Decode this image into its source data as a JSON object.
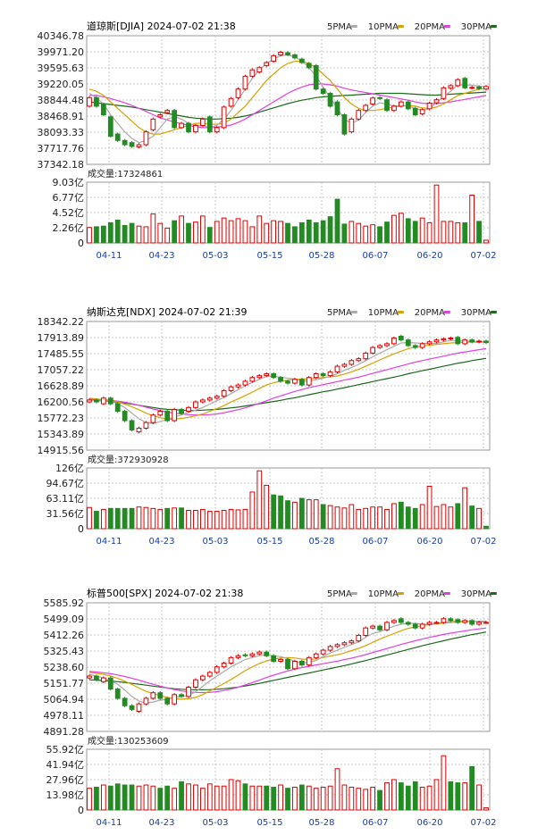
{
  "legend": [
    {
      "label": "5PMA",
      "color": "#aaaaaa"
    },
    {
      "label": "10PMA",
      "color": "#d9a000"
    },
    {
      "label": "20PMA",
      "color": "#e040e0"
    },
    {
      "label": "30PMA",
      "color": "#1a6a1a"
    }
  ],
  "colors": {
    "up": "#e00000",
    "down": "#228B22",
    "grid": "#c8c8c8",
    "axis": "#999999"
  },
  "x_ticks": [
    "04-11",
    "04-23",
    "05-03",
    "05-15",
    "05-28",
    "06-07",
    "06-20",
    "07-02"
  ],
  "chart_data": [
    {
      "type": "candlestick",
      "title": "道琼斯[DJIA] 2024-07-02 21:38",
      "price_ticks": [
        "40346.78",
        "39971.20",
        "39595.63",
        "39220.05",
        "38844.48",
        "38468.91",
        "38093.33",
        "37717.76",
        "37342.18"
      ],
      "price_range": [
        37342.18,
        40346.78
      ],
      "volume_label": "成交量:17324861",
      "volume_ticks": [
        "9.03亿",
        "6.77亿",
        "4.52亿",
        "2.26亿",
        "0"
      ],
      "volume_max": 9.03,
      "close": [
        38900,
        38700,
        38500,
        38000,
        37900,
        37800,
        37760,
        37800,
        38100,
        38400,
        38500,
        38600,
        38200,
        38300,
        38100,
        38250,
        38400,
        38100,
        38200,
        38680,
        38880,
        39100,
        39400,
        39550,
        39600,
        39720,
        39880,
        39960,
        39900,
        39830,
        39720,
        39600,
        39100,
        39000,
        38700,
        38500,
        38050,
        38400,
        38600,
        38720,
        38890,
        38880,
        38600,
        38700,
        38800,
        38640,
        38500,
        38620,
        38770,
        38850,
        39130,
        39180,
        39320,
        39130,
        39140,
        39110,
        39160
      ],
      "open": [
        38700,
        38900,
        38750,
        38450,
        38050,
        37900,
        37850,
        37750,
        37800,
        38150,
        38450,
        38550,
        38600,
        38200,
        38300,
        38100,
        38250,
        38450,
        38100,
        38200,
        38700,
        38900,
        39100,
        39400,
        39500,
        39650,
        39750,
        39900,
        39950,
        39900,
        39800,
        39700,
        39650,
        39100,
        39000,
        38800,
        38500,
        38100,
        38400,
        38600,
        38750,
        38900,
        38850,
        38600,
        38700,
        38800,
        38650,
        38520,
        38640,
        38780,
        38880,
        39120,
        39180,
        39350,
        39130,
        39150,
        39100
      ],
      "volume": [
        2.3,
        2.4,
        2.5,
        3.0,
        3.4,
        2.6,
        2.9,
        2.5,
        2.4,
        4.3,
        2.9,
        2.2,
        3.3,
        4.0,
        2.9,
        3.1,
        4.0,
        2.3,
        3.2,
        3.7,
        3.3,
        3.6,
        3.3,
        2.4,
        4.0,
        2.9,
        3.3,
        3.2,
        2.9,
        2.4,
        3.0,
        3.4,
        3.0,
        3.3,
        3.9,
        6.5,
        2.8,
        3.2,
        2.9,
        2.5,
        2.7,
        2.4,
        3.1,
        4.1,
        4.4,
        3.6,
        3.2,
        3.7,
        3.0,
        8.6,
        3.2,
        3.2,
        3.0,
        3.0,
        7.1,
        3.2,
        0.4
      ],
      "ma5": [
        39000,
        38900,
        38750,
        38500,
        38300,
        38100,
        37950,
        37850,
        37900,
        38000,
        38200,
        38400,
        38450,
        38400,
        38300,
        38250,
        38250,
        38200,
        38250,
        38400,
        38600,
        38850,
        39100,
        39350,
        39550,
        39700,
        39800,
        39880,
        39900,
        39850,
        39760,
        39600,
        39400,
        39150,
        38900,
        38650,
        38400,
        38300,
        38380,
        38550,
        38700,
        38780,
        38750,
        38700,
        38720,
        38700,
        38650,
        38600,
        38640,
        38780,
        38930,
        39050,
        39200,
        39200,
        39190,
        39170,
        39150
      ],
      "ma10": [
        39100,
        39050,
        38950,
        38800,
        38650,
        38500,
        38350,
        38200,
        38100,
        38050,
        38050,
        38100,
        38150,
        38200,
        38250,
        38300,
        38300,
        38280,
        38280,
        38300,
        38400,
        38550,
        38700,
        38900,
        39100,
        39300,
        39450,
        39600,
        39700,
        39750,
        39750,
        39700,
        39600,
        39450,
        39300,
        39100,
        38900,
        38750,
        38650,
        38600,
        38600,
        38620,
        38650,
        38680,
        38700,
        38720,
        38700,
        38660,
        38650,
        38680,
        38750,
        38850,
        38950,
        39000,
        39050,
        39100,
        39120
      ],
      "ma20": [
        38950,
        38950,
        38920,
        38880,
        38830,
        38780,
        38720,
        38650,
        38580,
        38500,
        38430,
        38380,
        38330,
        38290,
        38250,
        38220,
        38200,
        38200,
        38210,
        38230,
        38260,
        38320,
        38400,
        38500,
        38600,
        38700,
        38800,
        38900,
        39000,
        39080,
        39150,
        39200,
        39220,
        39220,
        39200,
        39170,
        39120,
        39080,
        39050,
        39020,
        38990,
        38960,
        38930,
        38900,
        38870,
        38840,
        38800,
        38770,
        38760,
        38760,
        38780,
        38800,
        38830,
        38860,
        38890,
        38920,
        38950
      ],
      "ma30": [
        38800,
        38780,
        38760,
        38740,
        38720,
        38700,
        38680,
        38650,
        38620,
        38590,
        38560,
        38530,
        38500,
        38470,
        38440,
        38420,
        38410,
        38400,
        38400,
        38410,
        38420,
        38440,
        38470,
        38510,
        38560,
        38610,
        38660,
        38710,
        38760,
        38800,
        38840,
        38870,
        38900,
        38920,
        38930,
        38940,
        38950,
        38960,
        38970,
        38980,
        38990,
        39000,
        39000,
        39000,
        39000,
        38990,
        38980,
        38970,
        38960,
        38960,
        38970,
        38980,
        38990,
        39000,
        39010,
        39020,
        39030
      ]
    },
    {
      "type": "candlestick",
      "title": "纳斯达克[NDX] 2024-07-02 21:39",
      "price_ticks": [
        "18342.22",
        "17913.89",
        "17485.55",
        "17057.22",
        "16628.89",
        "16200.56",
        "15772.23",
        "15343.89",
        "14915.56"
      ],
      "price_range": [
        14915.56,
        18342.22
      ],
      "volume_label": "成交量:372930928",
      "volume_ticks": [
        "126亿",
        "94.67亿",
        "63.11亿",
        "31.56亿",
        "0"
      ],
      "volume_max": 126,
      "close": [
        16250,
        16200,
        16300,
        16150,
        15950,
        15700,
        15450,
        15500,
        15650,
        15850,
        15950,
        15700,
        16000,
        15900,
        16050,
        16200,
        16250,
        16300,
        16350,
        16500,
        16600,
        16650,
        16750,
        16850,
        16900,
        16950,
        16850,
        16750,
        16700,
        16800,
        16650,
        16850,
        16950,
        16900,
        17000,
        17150,
        17200,
        17300,
        17350,
        17500,
        17650,
        17700,
        17750,
        17900,
        17850,
        17700,
        17650,
        17750,
        17800,
        17850,
        17880,
        17900,
        17750,
        17850,
        17800,
        17820,
        17780
      ],
      "open": [
        16200,
        16250,
        16150,
        16300,
        16150,
        15950,
        15700,
        15400,
        15500,
        15650,
        15850,
        15950,
        15700,
        16000,
        15950,
        16050,
        16200,
        16250,
        16300,
        16350,
        16500,
        16600,
        16650,
        16750,
        16850,
        16900,
        16950,
        16850,
        16750,
        16700,
        16800,
        16650,
        16850,
        16950,
        16900,
        17000,
        17150,
        17200,
        17300,
        17350,
        17500,
        17650,
        17700,
        17750,
        17950,
        17850,
        17700,
        17650,
        17750,
        17800,
        17850,
        17880,
        17920,
        17750,
        17850,
        17800,
        17820
      ],
      "volume": [
        44,
        36,
        40,
        42,
        42,
        42,
        42,
        45,
        44,
        42,
        40,
        42,
        43,
        43,
        38,
        38,
        40,
        36,
        36,
        38,
        40,
        39,
        40,
        76,
        120,
        90,
        70,
        68,
        58,
        55,
        63,
        60,
        60,
        50,
        48,
        45,
        43,
        50,
        40,
        42,
        45,
        45,
        40,
        52,
        55,
        45,
        42,
        50,
        88,
        46,
        50,
        45,
        52,
        85,
        47,
        42,
        5
      ],
      "ma5": [
        16250,
        16230,
        16230,
        16220,
        16150,
        16050,
        15900,
        15750,
        15650,
        15620,
        15680,
        15730,
        15800,
        15850,
        15920,
        15980,
        16050,
        16140,
        16230,
        16320,
        16420,
        16530,
        16630,
        16720,
        16800,
        16880,
        16880,
        16860,
        16830,
        16810,
        16760,
        16750,
        16790,
        16830,
        16880,
        16950,
        17040,
        17120,
        17200,
        17300,
        17400,
        17500,
        17590,
        17680,
        17770,
        17780,
        17770,
        17760,
        17750,
        17760,
        17800,
        17840,
        17830,
        17820,
        17810,
        17810,
        17800
      ],
      "ma10": [
        16300,
        16280,
        16260,
        16240,
        16200,
        16140,
        16070,
        15990,
        15900,
        15830,
        15780,
        15740,
        15740,
        15760,
        15790,
        15830,
        15880,
        15950,
        16020,
        16100,
        16200,
        16280,
        16370,
        16460,
        16560,
        16650,
        16710,
        16750,
        16780,
        16800,
        16810,
        16810,
        16830,
        16850,
        16870,
        16890,
        16940,
        17000,
        17070,
        17150,
        17230,
        17320,
        17400,
        17480,
        17550,
        17620,
        17660,
        17690,
        17710,
        17730,
        17750,
        17770,
        17780,
        17790,
        17790,
        17790,
        17790
      ],
      "ma20": [
        16280,
        16270,
        16260,
        16240,
        16220,
        16190,
        16150,
        16110,
        16060,
        16010,
        15970,
        15930,
        15900,
        15880,
        15860,
        15850,
        15850,
        15860,
        15880,
        15910,
        15950,
        15990,
        16040,
        16100,
        16160,
        16230,
        16300,
        16360,
        16420,
        16480,
        16530,
        16580,
        16620,
        16660,
        16700,
        16740,
        16780,
        16820,
        16860,
        16910,
        16960,
        17010,
        17060,
        17110,
        17160,
        17210,
        17260,
        17300,
        17340,
        17380,
        17420,
        17460,
        17500,
        17530,
        17560,
        17590,
        17620
      ],
      "ma30": [
        16250,
        16240,
        16230,
        16210,
        16190,
        16170,
        16140,
        16110,
        16080,
        16050,
        16020,
        16000,
        15990,
        15980,
        15970,
        15970,
        15980,
        15990,
        16000,
        16020,
        16040,
        16060,
        16090,
        16120,
        16150,
        16180,
        16210,
        16240,
        16280,
        16310,
        16350,
        16390,
        16430,
        16470,
        16500,
        16540,
        16580,
        16620,
        16660,
        16700,
        16740,
        16780,
        16820,
        16860,
        16900,
        16950,
        16990,
        17030,
        17070,
        17110,
        17150,
        17190,
        17230,
        17260,
        17300,
        17330,
        17360
      ]
    },
    {
      "type": "candlestick",
      "title": "标普500[SPX] 2024-07-02 21:38",
      "price_ticks": [
        "5585.92",
        "5499.09",
        "5412.26",
        "5325.43",
        "5238.60",
        "5151.77",
        "5064.94",
        "4978.11",
        "4891.28"
      ],
      "price_range": [
        4891.28,
        5585.92
      ],
      "volume_label": "成交量:130253609",
      "volume_ticks": [
        "55.92亿",
        "41.94亿",
        "27.96亿",
        "13.98亿",
        "0"
      ],
      "volume_max": 55.92,
      "close": [
        5190,
        5170,
        5180,
        5120,
        5070,
        5030,
        5010,
        5040,
        5070,
        5100,
        5070,
        5040,
        5090,
        5080,
        5130,
        5170,
        5190,
        5210,
        5240,
        5260,
        5290,
        5300,
        5300,
        5310,
        5320,
        5300,
        5270,
        5280,
        5230,
        5270,
        5250,
        5290,
        5310,
        5330,
        5350,
        5360,
        5370,
        5380,
        5410,
        5450,
        5460,
        5440,
        5480,
        5490,
        5480,
        5470,
        5450,
        5470,
        5480,
        5480,
        5500,
        5490,
        5480,
        5490,
        5470,
        5480,
        5480
      ],
      "open": [
        5180,
        5190,
        5160,
        5180,
        5120,
        5070,
        5030,
        5000,
        5040,
        5070,
        5100,
        5070,
        5040,
        5090,
        5080,
        5130,
        5170,
        5190,
        5210,
        5240,
        5260,
        5290,
        5305,
        5300,
        5310,
        5320,
        5300,
        5270,
        5280,
        5230,
        5270,
        5250,
        5290,
        5310,
        5330,
        5350,
        5360,
        5370,
        5380,
        5410,
        5450,
        5460,
        5440,
        5480,
        5500,
        5480,
        5470,
        5450,
        5470,
        5480,
        5480,
        5500,
        5495,
        5480,
        5490,
        5470,
        5480
      ],
      "volume": [
        20,
        21,
        23,
        22,
        24,
        23,
        23,
        22,
        23,
        22,
        20,
        22,
        20,
        26,
        24,
        23,
        20,
        24,
        22,
        22,
        28,
        27,
        24,
        22,
        22,
        22,
        21,
        23,
        20,
        21,
        23,
        22,
        20,
        21,
        22,
        38,
        23,
        21,
        20,
        19,
        21,
        18,
        25,
        28,
        25,
        22,
        26,
        21,
        22,
        28,
        50,
        26,
        25,
        25,
        40,
        23,
        2
      ],
      "ma5": [
        5200,
        5190,
        5180,
        5165,
        5145,
        5115,
        5080,
        5055,
        5045,
        5050,
        5060,
        5065,
        5075,
        5080,
        5085,
        5105,
        5135,
        5165,
        5190,
        5215,
        5240,
        5260,
        5280,
        5290,
        5300,
        5305,
        5300,
        5295,
        5285,
        5270,
        5260,
        5265,
        5275,
        5295,
        5315,
        5330,
        5345,
        5360,
        5375,
        5400,
        5420,
        5430,
        5445,
        5460,
        5470,
        5475,
        5475,
        5470,
        5470,
        5475,
        5480,
        5485,
        5488,
        5488,
        5485,
        5483,
        5481
      ],
      "ma10": [
        5210,
        5205,
        5200,
        5190,
        5178,
        5163,
        5145,
        5125,
        5108,
        5095,
        5085,
        5075,
        5068,
        5065,
        5068,
        5075,
        5090,
        5110,
        5130,
        5150,
        5172,
        5195,
        5220,
        5240,
        5258,
        5272,
        5282,
        5288,
        5290,
        5288,
        5282,
        5280,
        5283,
        5290,
        5298,
        5305,
        5315,
        5328,
        5340,
        5355,
        5372,
        5390,
        5405,
        5420,
        5435,
        5448,
        5455,
        5462,
        5468,
        5472,
        5476,
        5479,
        5482,
        5484,
        5485,
        5486,
        5487
      ],
      "ma20": [
        5215,
        5212,
        5208,
        5203,
        5196,
        5188,
        5178,
        5168,
        5157,
        5146,
        5136,
        5126,
        5117,
        5110,
        5105,
        5102,
        5101,
        5102,
        5106,
        5112,
        5120,
        5130,
        5142,
        5155,
        5168,
        5182,
        5195,
        5207,
        5218,
        5228,
        5236,
        5243,
        5250,
        5257,
        5264,
        5271,
        5279,
        5287,
        5296,
        5306,
        5317,
        5328,
        5339,
        5350,
        5361,
        5371,
        5381,
        5390,
        5399,
        5407,
        5415,
        5422,
        5428,
        5434,
        5440,
        5445,
        5450
      ],
      "ma30": [
        5170,
        5168,
        5166,
        5163,
        5160,
        5156,
        5151,
        5146,
        5141,
        5136,
        5131,
        5126,
        5122,
        5119,
        5117,
        5116,
        5116,
        5117,
        5119,
        5122,
        5126,
        5131,
        5137,
        5144,
        5151,
        5159,
        5167,
        5175,
        5183,
        5191,
        5199,
        5207,
        5215,
        5223,
        5231,
        5239,
        5247,
        5256,
        5265,
        5274,
        5284,
        5294,
        5304,
        5314,
        5324,
        5334,
        5344,
        5354,
        5363,
        5372,
        5381,
        5390,
        5398,
        5406,
        5414,
        5421,
        5428
      ]
    }
  ]
}
